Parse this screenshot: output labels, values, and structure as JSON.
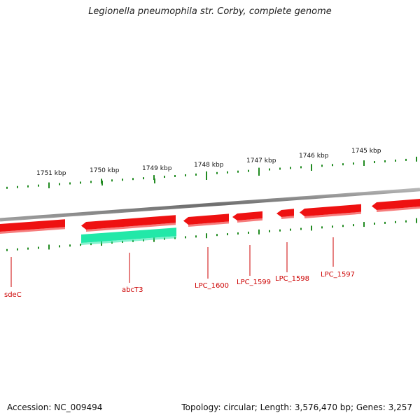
{
  "title": "Legionella pneumophila str. Corby, complete genome",
  "footer": {
    "accession": "Accession: NC_009494",
    "summary": "Topology: circular; Length: 3,576,470 bp; Genes: 3,257"
  },
  "colors": {
    "backbone": "#8a8a8a",
    "gene_reverse": "#ee1111",
    "gene_forward": "#22e8a8",
    "ticks": "#228b22",
    "gene_label": "#cc0000",
    "scale_label": "#111111"
  },
  "scale_ticks": [
    {
      "label": "1751 kbp"
    },
    {
      "label": "1750 kbp"
    },
    {
      "label": "1749 kbp"
    },
    {
      "label": "1748 kbp"
    },
    {
      "label": "1747 kbp"
    },
    {
      "label": "1746 kbp"
    },
    {
      "label": "1745 kbp"
    }
  ],
  "genes": [
    {
      "name": "sdeC",
      "strand": "reverse"
    },
    {
      "name": "abcT3",
      "strand": "forward"
    },
    {
      "name": "LPC_1600",
      "strand": "reverse"
    },
    {
      "name": "LPC_1599",
      "strand": "reverse"
    },
    {
      "name": "LPC_1598",
      "strand": "reverse"
    },
    {
      "name": "LPC_1597",
      "strand": "reverse"
    }
  ]
}
